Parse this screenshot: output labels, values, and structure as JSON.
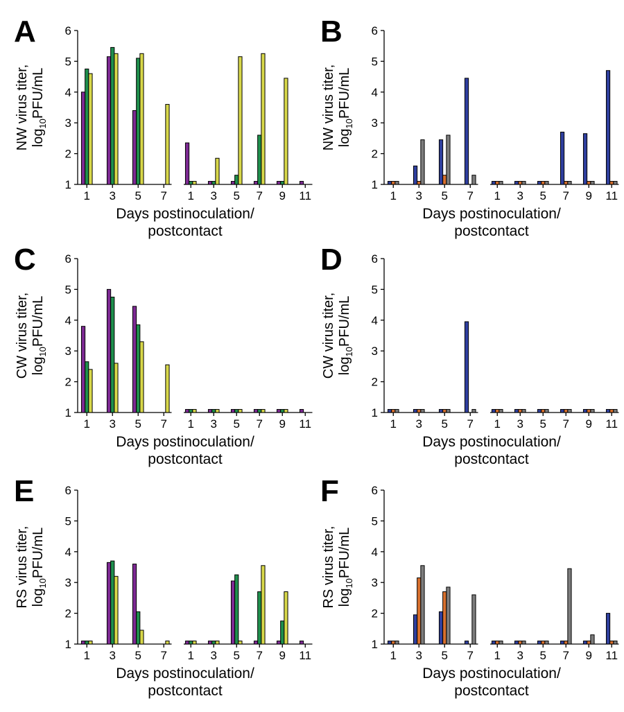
{
  "colors": {
    "purple": "#7d2a93",
    "green": "#1f8f4d",
    "yellow": "#d8d84a",
    "blue": "#2f3f9e",
    "orange": "#d8702e",
    "gray": "#7d7d7d"
  },
  "chart_data": [
    {
      "panel": "A",
      "type": "bar",
      "ylabel_line1": "NW virus titer,",
      "ylabel_pre": "log",
      "ylabel_sub": "10",
      "ylabel_post": "PFU/mL",
      "xlabel_line1": "Days postinoculation/",
      "xlabel_line2": "postcontact",
      "ylim": [
        1,
        6
      ],
      "yticks": [
        "1",
        "2",
        "3",
        "4",
        "5",
        "6"
      ],
      "groups": [
        {
          "days": [
            1,
            2,
            3,
            4,
            5,
            6,
            7
          ],
          "ticks": [
            "1",
            "3",
            "5",
            "7"
          ],
          "series_colors": [
            "purple",
            "green",
            "yellow"
          ],
          "values": [
            [
              4.0,
              4.75,
              4.6
            ],
            null,
            [
              5.15,
              5.45,
              5.25
            ],
            null,
            [
              3.4,
              5.1,
              5.25
            ],
            null,
            [
              null,
              null,
              3.6
            ]
          ]
        },
        {
          "days": [
            1,
            2,
            3,
            4,
            5,
            6,
            7,
            8,
            9,
            10,
            11
          ],
          "ticks": [
            "1",
            "3",
            "5",
            "7",
            "9",
            "11"
          ],
          "series_colors": [
            "purple",
            "green",
            "yellow"
          ],
          "values": [
            [
              2.35,
              1.1,
              1.1
            ],
            null,
            [
              1.1,
              1.1,
              1.85
            ],
            null,
            [
              1.1,
              1.3,
              5.15
            ],
            null,
            [
              1.1,
              2.6,
              5.25
            ],
            null,
            [
              1.1,
              1.1,
              4.45
            ],
            null,
            [
              1.1,
              null,
              null
            ]
          ]
        }
      ]
    },
    {
      "panel": "B",
      "type": "bar",
      "ylabel_line1": "NW virus titer,",
      "ylabel_pre": "log",
      "ylabel_sub": "10",
      "ylabel_post": "PFU/mL",
      "xlabel_line1": "Days postinoculation/",
      "xlabel_line2": "postcontact",
      "ylim": [
        1,
        6
      ],
      "yticks": [
        "1",
        "2",
        "3",
        "4",
        "5",
        "6"
      ],
      "groups": [
        {
          "days": [
            1,
            2,
            3,
            4,
            5,
            6,
            7
          ],
          "ticks": [
            "1",
            "3",
            "5",
            "7"
          ],
          "series_colors": [
            "blue",
            "orange",
            "gray"
          ],
          "values": [
            [
              1.1,
              1.1,
              1.1
            ],
            null,
            [
              1.6,
              1.1,
              2.45
            ],
            null,
            [
              2.45,
              1.3,
              2.6
            ],
            null,
            [
              4.45,
              null,
              1.3
            ]
          ]
        },
        {
          "days": [
            1,
            2,
            3,
            4,
            5,
            6,
            7,
            8,
            9,
            10,
            11
          ],
          "ticks": [
            "1",
            "3",
            "5",
            "7",
            "9",
            "11"
          ],
          "series_colors": [
            "blue",
            "orange",
            "gray"
          ],
          "values": [
            [
              1.1,
              1.1,
              1.1
            ],
            null,
            [
              1.1,
              1.1,
              1.1
            ],
            null,
            [
              1.1,
              1.1,
              1.1
            ],
            null,
            [
              2.7,
              1.1,
              1.1
            ],
            null,
            [
              2.65,
              1.1,
              1.1
            ],
            null,
            [
              4.7,
              1.1,
              1.1
            ]
          ]
        }
      ]
    },
    {
      "panel": "C",
      "type": "bar",
      "ylabel_line1": "CW virus titer,",
      "ylabel_pre": "log",
      "ylabel_sub": "10",
      "ylabel_post": "PFU/mL",
      "xlabel_line1": "Days postinoculation/",
      "xlabel_line2": "postcontact",
      "ylim": [
        1,
        6
      ],
      "yticks": [
        "1",
        "2",
        "3",
        "4",
        "5",
        "6"
      ],
      "groups": [
        {
          "days": [
            1,
            2,
            3,
            4,
            5,
            6,
            7
          ],
          "ticks": [
            "1",
            "3",
            "5",
            "7"
          ],
          "series_colors": [
            "purple",
            "green",
            "yellow"
          ],
          "values": [
            [
              3.8,
              2.65,
              2.4
            ],
            null,
            [
              5.0,
              4.75,
              2.6
            ],
            null,
            [
              4.45,
              3.85,
              3.3
            ],
            null,
            [
              null,
              null,
              2.55
            ]
          ]
        },
        {
          "days": [
            1,
            2,
            3,
            4,
            5,
            6,
            7,
            8,
            9,
            10,
            11
          ],
          "ticks": [
            "1",
            "3",
            "5",
            "7",
            "9",
            "11"
          ],
          "series_colors": [
            "purple",
            "green",
            "yellow"
          ],
          "values": [
            [
              1.1,
              1.1,
              1.1
            ],
            null,
            [
              1.1,
              1.1,
              1.1
            ],
            null,
            [
              1.1,
              1.1,
              1.1
            ],
            null,
            [
              1.1,
              1.1,
              1.1
            ],
            null,
            [
              1.1,
              1.1,
              1.1
            ],
            null,
            [
              1.1,
              null,
              null
            ]
          ]
        }
      ]
    },
    {
      "panel": "D",
      "type": "bar",
      "ylabel_line1": "CW virus titer,",
      "ylabel_pre": "log",
      "ylabel_sub": "10",
      "ylabel_post": "PFU/mL",
      "xlabel_line1": "Days postinoculation/",
      "xlabel_line2": "postcontact",
      "ylim": [
        1,
        6
      ],
      "yticks": [
        "1",
        "2",
        "3",
        "4",
        "5",
        "6"
      ],
      "groups": [
        {
          "days": [
            1,
            2,
            3,
            4,
            5,
            6,
            7
          ],
          "ticks": [
            "1",
            "3",
            "5",
            "7"
          ],
          "series_colors": [
            "blue",
            "orange",
            "gray"
          ],
          "values": [
            [
              1.1,
              1.1,
              1.1
            ],
            null,
            [
              1.1,
              1.1,
              1.1
            ],
            null,
            [
              1.1,
              1.1,
              1.1
            ],
            null,
            [
              3.95,
              null,
              1.1
            ]
          ]
        },
        {
          "days": [
            1,
            2,
            3,
            4,
            5,
            6,
            7,
            8,
            9,
            10,
            11
          ],
          "ticks": [
            "1",
            "3",
            "5",
            "7",
            "9",
            "11"
          ],
          "series_colors": [
            "blue",
            "orange",
            "gray"
          ],
          "values": [
            [
              1.1,
              1.1,
              1.1
            ],
            null,
            [
              1.1,
              1.1,
              1.1
            ],
            null,
            [
              1.1,
              1.1,
              1.1
            ],
            null,
            [
              1.1,
              1.1,
              1.1
            ],
            null,
            [
              1.1,
              1.1,
              1.1
            ],
            null,
            [
              1.1,
              1.1,
              1.1
            ]
          ]
        }
      ]
    },
    {
      "panel": "E",
      "type": "bar",
      "ylabel_line1": "RS virus titer,",
      "ylabel_pre": "log",
      "ylabel_sub": "10",
      "ylabel_post": "PFU/mL",
      "xlabel_line1": "Days postinoculation/",
      "xlabel_line2": "postcontact",
      "ylim": [
        1,
        6
      ],
      "yticks": [
        "1",
        "2",
        "3",
        "4",
        "5",
        "6"
      ],
      "groups": [
        {
          "days": [
            1,
            2,
            3,
            4,
            5,
            6,
            7
          ],
          "ticks": [
            "1",
            "3",
            "5",
            "7"
          ],
          "series_colors": [
            "purple",
            "green",
            "yellow"
          ],
          "values": [
            [
              1.1,
              1.1,
              1.1
            ],
            null,
            [
              3.65,
              3.7,
              3.2
            ],
            null,
            [
              3.6,
              2.05,
              1.45
            ],
            null,
            [
              null,
              null,
              1.1
            ]
          ]
        },
        {
          "days": [
            1,
            2,
            3,
            4,
            5,
            6,
            7,
            8,
            9,
            10,
            11
          ],
          "ticks": [
            "1",
            "3",
            "5",
            "7",
            "9",
            "11"
          ],
          "series_colors": [
            "purple",
            "green",
            "yellow"
          ],
          "values": [
            [
              1.1,
              1.1,
              1.1
            ],
            null,
            [
              1.1,
              1.1,
              1.1
            ],
            null,
            [
              3.05,
              3.25,
              1.1
            ],
            null,
            [
              1.1,
              2.7,
              3.55
            ],
            null,
            [
              1.1,
              1.75,
              2.7
            ],
            null,
            [
              1.1,
              null,
              null
            ]
          ]
        }
      ]
    },
    {
      "panel": "F",
      "type": "bar",
      "ylabel_line1": "RS virus titer,",
      "ylabel_pre": "log",
      "ylabel_sub": "10",
      "ylabel_post": "PFU/mL",
      "xlabel_line1": "Days postinoculation/",
      "xlabel_line2": "postcontact",
      "ylim": [
        1,
        6
      ],
      "yticks": [
        "1",
        "2",
        "3",
        "4",
        "5",
        "6"
      ],
      "groups": [
        {
          "days": [
            1,
            2,
            3,
            4,
            5,
            6,
            7
          ],
          "ticks": [
            "1",
            "3",
            "5",
            "7"
          ],
          "series_colors": [
            "blue",
            "orange",
            "gray"
          ],
          "values": [
            [
              1.1,
              1.1,
              1.1
            ],
            null,
            [
              1.95,
              3.15,
              3.55
            ],
            null,
            [
              2.05,
              2.7,
              2.85
            ],
            null,
            [
              1.1,
              null,
              2.6
            ]
          ]
        },
        {
          "days": [
            1,
            2,
            3,
            4,
            5,
            6,
            7,
            8,
            9,
            10,
            11
          ],
          "ticks": [
            "1",
            "3",
            "5",
            "7",
            "9",
            "11"
          ],
          "series_colors": [
            "blue",
            "orange",
            "gray"
          ],
          "values": [
            [
              1.1,
              1.1,
              1.1
            ],
            null,
            [
              1.1,
              1.1,
              1.1
            ],
            null,
            [
              1.1,
              1.1,
              1.1
            ],
            null,
            [
              1.1,
              1.1,
              3.45
            ],
            null,
            [
              1.1,
              1.1,
              1.3
            ],
            null,
            [
              2.0,
              1.1,
              1.1
            ]
          ]
        }
      ]
    }
  ]
}
